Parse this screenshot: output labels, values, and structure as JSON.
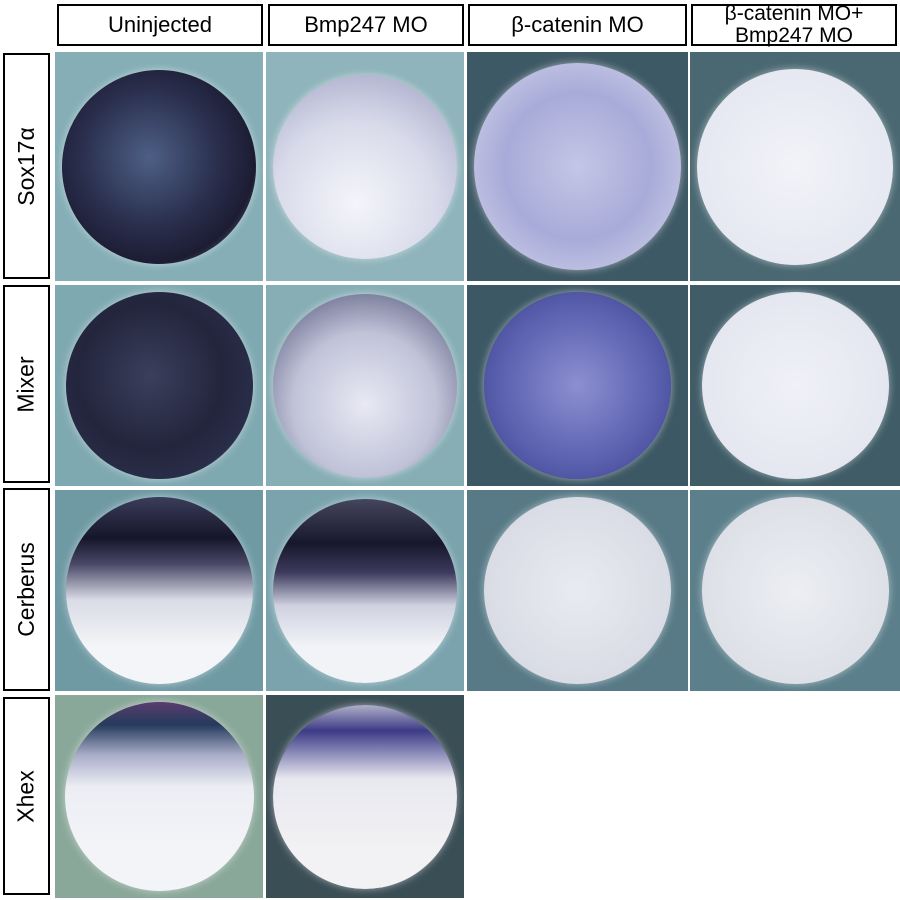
{
  "columns": [
    "Uninjected",
    "Bmp247 MO",
    "β-catenin MO",
    "β-catenin MO+ Bmp247 MO"
  ],
  "rows": [
    "Sox17α",
    "Mixer",
    "Cerberus",
    "Xhex"
  ],
  "colors": {
    "stain": "#1c1c3a",
    "light_stain": "#6a6fb0",
    "embryo": "#e8eaf2",
    "bg_light": "#86aeb6",
    "bg_dark": "#3f5d69"
  }
}
